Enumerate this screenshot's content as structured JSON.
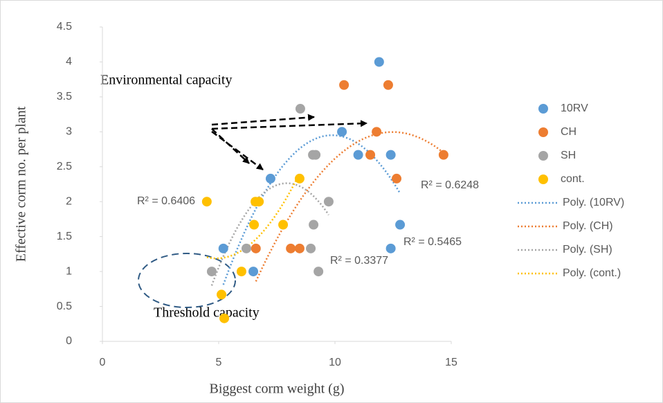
{
  "chart_data": {
    "type": "scatter",
    "xlabel": "Biggest corm weight (g)",
    "ylabel": "Effective corm no. per plant",
    "xlim": [
      0,
      15
    ],
    "xticks": [
      0,
      5,
      10,
      15
    ],
    "ylim": [
      0,
      4.5
    ],
    "yticks": [
      0,
      0.5,
      1,
      1.5,
      2,
      2.5,
      3,
      3.5,
      4,
      4.5
    ],
    "series": [
      {
        "name": "10RV",
        "color": "#5b9bd5",
        "x": [
          11.9,
          10.3,
          11.0,
          12.4,
          7.23,
          12.8,
          5.2,
          12.4,
          6.49
        ],
        "values": [
          4.0,
          3.0,
          2.67,
          2.67,
          2.33,
          1.67,
          1.33,
          1.33,
          1.0
        ]
      },
      {
        "name": "CH",
        "color": "#ed7d31",
        "x": [
          10.39,
          12.29,
          11.79,
          11.52,
          14.67,
          12.65,
          6.6,
          8.1,
          8.48
        ],
        "values": [
          3.67,
          3.67,
          3.0,
          2.67,
          2.67,
          2.33,
          1.33,
          1.33,
          1.33
        ]
      },
      {
        "name": "SH",
        "color": "#a5a5a5",
        "x": [
          8.51,
          9.05,
          9.17,
          9.73,
          9.08,
          6.19,
          8.96,
          4.7,
          9.29
        ],
        "values": [
          3.33,
          2.67,
          2.67,
          2.0,
          1.67,
          1.33,
          1.33,
          1.0,
          1.0
        ]
      },
      {
        "name": "cont.",
        "color": "#ffc000",
        "x": [
          4.49,
          6.58,
          6.73,
          8.48,
          6.52,
          7.77,
          5.98,
          5.12,
          5.24
        ],
        "values": [
          2.0,
          2.0,
          2.0,
          2.33,
          1.67,
          1.67,
          1.0,
          0.67,
          0.33
        ]
      }
    ],
    "trendlines": [
      {
        "name": "Poly. (10RV)",
        "color": "#5b9bd5",
        "r2_label": "R² = 0.5465"
      },
      {
        "name": "Poly. (CH)",
        "color": "#ed7d31",
        "r2_label": "R² = 0.6248"
      },
      {
        "name": "Poly. (SH)",
        "color": "#a5a5a5",
        "r2_label": "R² = 0.3377"
      },
      {
        "name": "Poly. (cont.)",
        "color": "#ffc000",
        "r2_label": "R² = 0.6406"
      }
    ],
    "annotations": [
      "Environmental capacity",
      "Threshold capacity"
    ]
  }
}
